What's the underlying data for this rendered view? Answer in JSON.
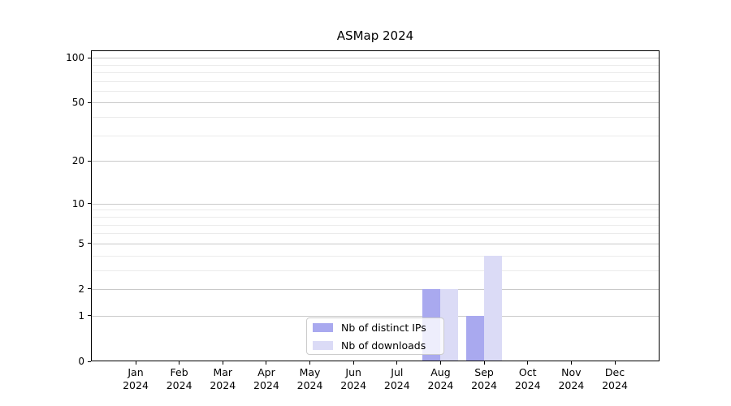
{
  "chart_data": {
    "type": "bar",
    "title": "ASMap 2024",
    "categories": [
      "Jan 2024",
      "Feb 2024",
      "Mar 2024",
      "Apr 2024",
      "May 2024",
      "Jun 2024",
      "Jul 2024",
      "Aug 2024",
      "Sep 2024",
      "Oct 2024",
      "Nov 2024",
      "Dec 2024"
    ],
    "series": [
      {
        "name": "Nb of distinct IPs",
        "color": "#a9a9ef",
        "values": [
          0,
          0,
          0,
          0,
          0,
          0,
          0,
          2,
          1,
          0,
          0,
          0
        ]
      },
      {
        "name": "Nb of downloads",
        "color": "#dbdbf6",
        "values": [
          0,
          0,
          0,
          0,
          0,
          0,
          0,
          2,
          4,
          0,
          0,
          0
        ]
      }
    ],
    "xlabel": "",
    "ylabel": "",
    "yscale": "log1p",
    "ylim": [
      0,
      112
    ],
    "y_major_ticks": [
      0,
      1,
      2,
      5,
      10,
      20,
      50,
      100
    ],
    "y_minor_gridlines": [
      3,
      4,
      6,
      7,
      8,
      9,
      30,
      40,
      60,
      70,
      80,
      90
    ],
    "grid": true,
    "legend_position": "lower-center-inside",
    "colors": {
      "spine": "#000000",
      "grid_major": "#c9c9c9",
      "grid_minor": "#ebebeb",
      "background": "#ffffff"
    }
  }
}
